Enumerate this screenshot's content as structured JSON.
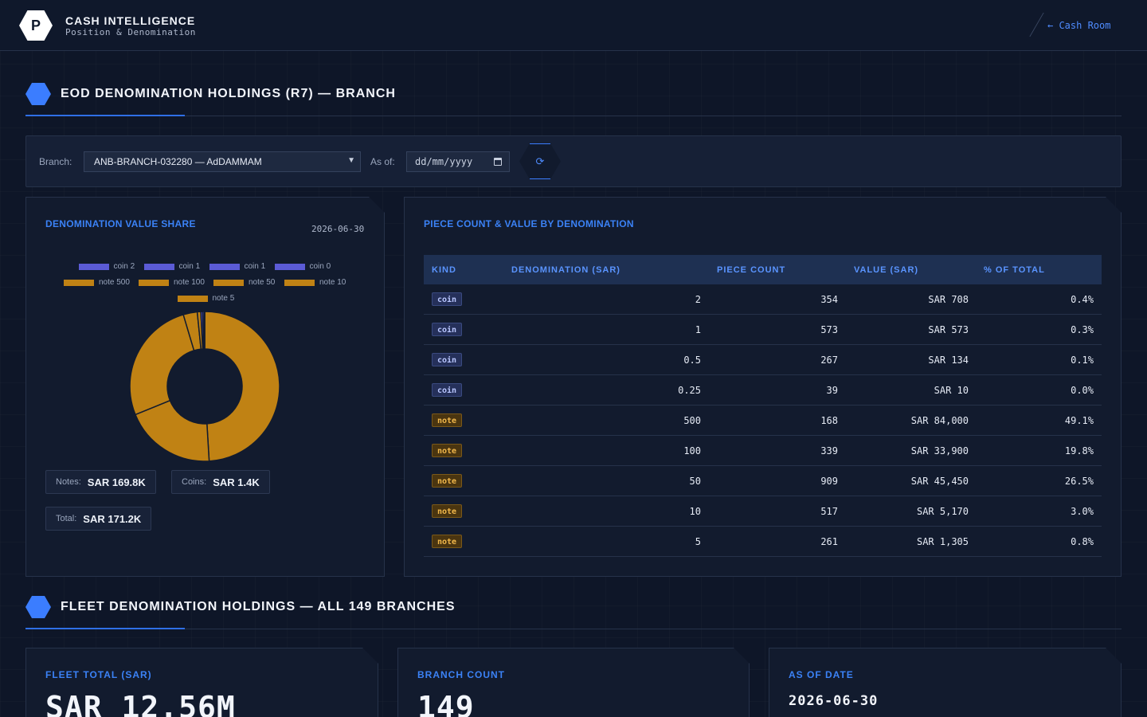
{
  "header": {
    "logo_letter": "P",
    "title": "CASH INTELLIGENCE",
    "subtitle": "Position & Denomination",
    "back_link": "← Cash Room"
  },
  "section1": {
    "title": "EOD DENOMINATION HOLDINGS (R7) — BRANCH"
  },
  "filters": {
    "branch_label": "Branch:",
    "branch_value": "ANB-BRANCH-032280 — AdDAMMAM",
    "asof_label": "As of:",
    "asof_placeholder": "dd/mm/yyyy",
    "refresh_icon": "⟳"
  },
  "share_panel": {
    "title": "DENOMINATION VALUE SHARE",
    "date": "2026-06-30",
    "notes_label": "Notes:",
    "notes_value": "SAR 169.8K",
    "coins_label": "Coins:",
    "coins_value": "SAR 1.4K",
    "total_label": "Total:",
    "total_value": "SAR 171.2K"
  },
  "chart_data": {
    "type": "pie",
    "donut": true,
    "legend_position": "top",
    "series": [
      {
        "name": "coin 2",
        "value": 708,
        "color": "#5b5bd6"
      },
      {
        "name": "coin 1",
        "value": 573,
        "color": "#5b5bd6"
      },
      {
        "name": "coin 1",
        "value": 134,
        "color": "#5b5bd6"
      },
      {
        "name": "coin 0",
        "value": 10,
        "color": "#5b5bd6"
      },
      {
        "name": "note 500",
        "value": 84000,
        "color": "#c08214"
      },
      {
        "name": "note 100",
        "value": 33900,
        "color": "#c08214"
      },
      {
        "name": "note 50",
        "value": 45450,
        "color": "#c08214"
      },
      {
        "name": "note 10",
        "value": 5170,
        "color": "#c08214"
      },
      {
        "name": "note 5",
        "value": 1305,
        "color": "#c08214"
      }
    ]
  },
  "table_panel": {
    "title": "PIECE COUNT & VALUE BY DENOMINATION",
    "headers": [
      "KIND",
      "DENOMINATION (SAR)",
      "PIECE COUNT",
      "VALUE (SAR)",
      "% OF TOTAL"
    ],
    "rows": [
      {
        "kind": "coin",
        "denom": "2",
        "count": "354",
        "value": "SAR 708",
        "pct": "0.4%"
      },
      {
        "kind": "coin",
        "denom": "1",
        "count": "573",
        "value": "SAR 573",
        "pct": "0.3%"
      },
      {
        "kind": "coin",
        "denom": "0.5",
        "count": "267",
        "value": "SAR 134",
        "pct": "0.1%"
      },
      {
        "kind": "coin",
        "denom": "0.25",
        "count": "39",
        "value": "SAR 10",
        "pct": "0.0%"
      },
      {
        "kind": "note",
        "denom": "500",
        "count": "168",
        "value": "SAR 84,000",
        "pct": "49.1%"
      },
      {
        "kind": "note",
        "denom": "100",
        "count": "339",
        "value": "SAR 33,900",
        "pct": "19.8%"
      },
      {
        "kind": "note",
        "denom": "50",
        "count": "909",
        "value": "SAR 45,450",
        "pct": "26.5%"
      },
      {
        "kind": "note",
        "denom": "10",
        "count": "517",
        "value": "SAR 5,170",
        "pct": "3.0%"
      },
      {
        "kind": "note",
        "denom": "5",
        "count": "261",
        "value": "SAR 1,305",
        "pct": "0.8%"
      }
    ]
  },
  "section2": {
    "title": "FLEET DENOMINATION HOLDINGS — ALL 149 BRANCHES"
  },
  "fleet": {
    "total_label": "FLEET TOTAL (SAR)",
    "total_value": "SAR 12.56M",
    "count_label": "BRANCH COUNT",
    "count_value": "149",
    "date_label": "AS OF DATE",
    "date_value": "2026-06-30"
  }
}
